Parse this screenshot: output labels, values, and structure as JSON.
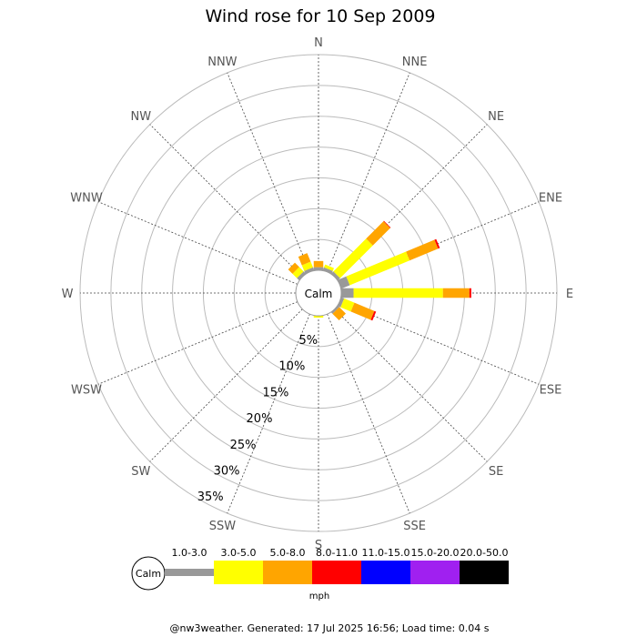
{
  "chart_data": {
    "type": "wind-rose",
    "title": "Wind rose for 10 Sep 2009",
    "directions": [
      "N",
      "NNE",
      "NE",
      "ENE",
      "E",
      "ESE",
      "SE",
      "SSE",
      "S",
      "SSW",
      "SW",
      "WSW",
      "W",
      "WNW",
      "NW",
      "NNW"
    ],
    "ring_labels": [
      "5%",
      "10%",
      "15%",
      "20%",
      "25%",
      "30%",
      "35%"
    ],
    "rings": [
      5,
      10,
      15,
      20,
      25,
      30,
      35
    ],
    "max_percent": 35,
    "calm_label": "Calm",
    "bins": [
      {
        "label": "1.0-3.0",
        "color": "#999999"
      },
      {
        "label": "3.0-5.0",
        "color": "#ffff00"
      },
      {
        "label": "5.0-8.0",
        "color": "#ffa500"
      },
      {
        "label": "8.0-11.0",
        "color": "#ff0000"
      },
      {
        "label": "11.0-15.0",
        "color": "#0000ff"
      },
      {
        "label": "15.0-20.0",
        "color": "#a020f0"
      },
      {
        "label": "20.0-50.0",
        "color": "#000000"
      }
    ],
    "unit": "mph",
    "series": [
      [
        0.5,
        0.0,
        1.0,
        0.0,
        0.0,
        0.0,
        0.0
      ],
      [
        0.5,
        0.5,
        0.0,
        0.0,
        0.0,
        0.0,
        0.0
      ],
      [
        0.5,
        7.5,
        4.0,
        0.1,
        0.0,
        0.0,
        0.0
      ],
      [
        1.5,
        10.5,
        5.0,
        0.3,
        0.0,
        0.0,
        0.0
      ],
      [
        2.0,
        14.5,
        4.3,
        0.3,
        0.0,
        0.0,
        0.0
      ],
      [
        0.5,
        1.8,
        3.5,
        0.3,
        0.0,
        0.0,
        0.0
      ],
      [
        0.3,
        0.0,
        1.5,
        0.0,
        0.0,
        0.0,
        0.0
      ],
      [
        0.0,
        0.0,
        0.0,
        0.0,
        0.0,
        0.0,
        0.0
      ],
      [
        0.0,
        0.3,
        0.0,
        0.0,
        0.0,
        0.0,
        0.0
      ],
      [
        0.0,
        0.0,
        0.0,
        0.0,
        0.0,
        0.0,
        0.0
      ],
      [
        0.0,
        0.0,
        0.0,
        0.0,
        0.0,
        0.0,
        0.0
      ],
      [
        0.0,
        0.0,
        0.0,
        0.0,
        0.0,
        0.0,
        0.0
      ],
      [
        0.0,
        0.0,
        0.0,
        0.0,
        0.0,
        0.0,
        0.0
      ],
      [
        0.0,
        0.0,
        0.0,
        0.0,
        0.0,
        0.0,
        0.0
      ],
      [
        0.5,
        1.0,
        1.0,
        0.0,
        0.0,
        0.0,
        0.0
      ],
      [
        0.5,
        1.0,
        1.5,
        0.0,
        0.0,
        0.0,
        0.0
      ]
    ],
    "footer": "@nw3weather. Generated: 17 Jul 2025 16:56; Load time: 0.04 s"
  }
}
